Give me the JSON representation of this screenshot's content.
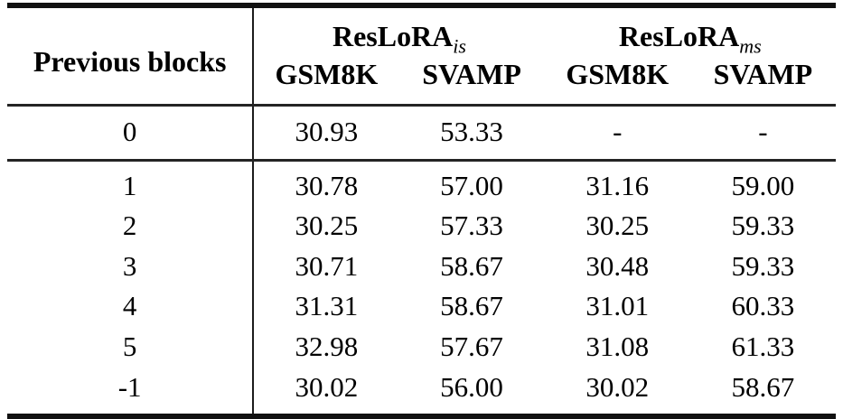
{
  "table": {
    "row_header": "Previous blocks",
    "groups": [
      {
        "name": "ResLoRA",
        "subscript": "is",
        "columns": [
          "GSM8K",
          "SVAMP"
        ]
      },
      {
        "name": "ResLoRA",
        "subscript": "ms",
        "columns": [
          "GSM8K",
          "SVAMP"
        ]
      }
    ],
    "rows": [
      {
        "label": "0",
        "values": [
          "30.93",
          "53.33",
          "-",
          "-"
        ]
      },
      {
        "label": "1",
        "values": [
          "30.78",
          "57.00",
          "31.16",
          "59.00"
        ]
      },
      {
        "label": "2",
        "values": [
          "30.25",
          "57.33",
          "30.25",
          "59.33"
        ]
      },
      {
        "label": "3",
        "values": [
          "30.71",
          "58.67",
          "30.48",
          "59.33"
        ]
      },
      {
        "label": "4",
        "values": [
          "31.31",
          "58.67",
          "31.01",
          "60.33"
        ]
      },
      {
        "label": "5",
        "values": [
          "32.98",
          "57.67",
          "31.08",
          "61.33"
        ]
      },
      {
        "label": "-1",
        "values": [
          "30.02",
          "56.00",
          "30.02",
          "58.67"
        ]
      }
    ]
  }
}
